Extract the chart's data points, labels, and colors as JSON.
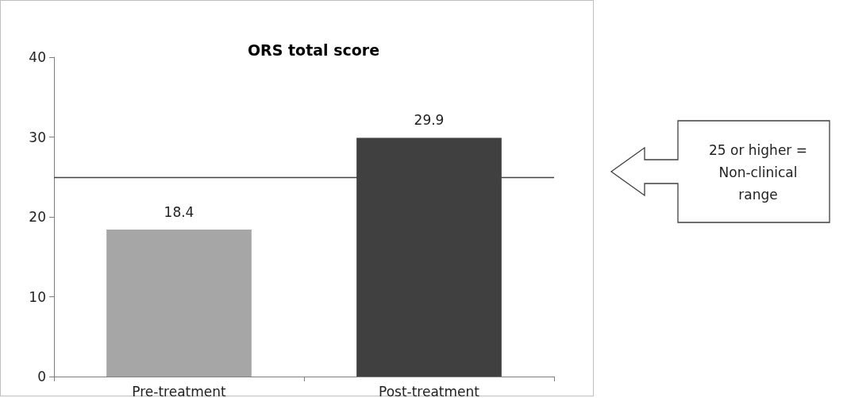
{
  "chart_data": {
    "type": "bar",
    "title": "ORS total score",
    "categories": [
      "Pre-treatment",
      "Post-treatment"
    ],
    "series": [
      {
        "colors": [
          "#a6a6a6",
          "#404040"
        ],
        "values": [
          18.4,
          29.9
        ]
      }
    ],
    "ylim": [
      0,
      40
    ],
    "yticks": [
      0,
      10,
      20,
      30,
      40
    ],
    "grid": false,
    "data_labels": true,
    "ref_lines": [
      {
        "axis": "y",
        "value": 25,
        "color": "#404040"
      }
    ],
    "annotations": [
      "25 or higher = Non-clinical range"
    ]
  }
}
